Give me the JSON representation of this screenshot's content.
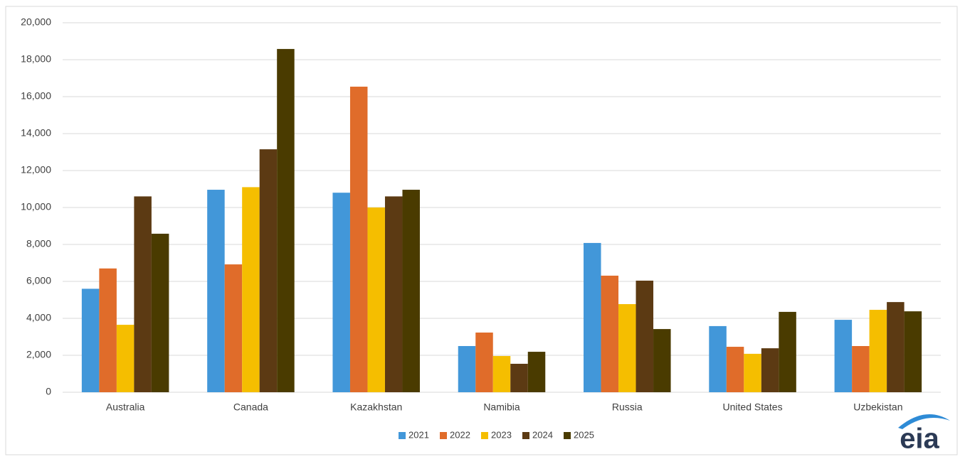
{
  "chart_data": {
    "type": "bar",
    "categories": [
      "Australia",
      "Canada",
      "Kazakhstan",
      "Namibia",
      "Russia",
      "United States",
      "Uzbekistan"
    ],
    "series": [
      {
        "name": "2021",
        "color": "#4297d9",
        "values": [
          5600,
          10960,
          10800,
          2500,
          8080,
          3580,
          3920
        ]
      },
      {
        "name": "2022",
        "color": "#e06c2a",
        "values": [
          6700,
          6920,
          16540,
          3230,
          6310,
          2460,
          2500
        ]
      },
      {
        "name": "2023",
        "color": "#f5be00",
        "values": [
          3650,
          11100,
          10000,
          1960,
          4770,
          2080,
          4460
        ]
      },
      {
        "name": "2024",
        "color": "#5c3a13",
        "values": [
          10600,
          13150,
          10600,
          1540,
          6040,
          2380,
          4880
        ]
      },
      {
        "name": "2025",
        "color": "#4a3b00",
        "values": [
          8580,
          18580,
          10960,
          2190,
          3420,
          4350,
          4380
        ]
      }
    ],
    "ylim": [
      0,
      20000
    ],
    "yticks": [
      0,
      {
        "value": 2000,
        "label": "2,000"
      },
      {
        "value": 4000,
        "label": "4,000"
      },
      {
        "value": 6000,
        "label": "6,000"
      },
      {
        "value": 8000,
        "label": "8,000"
      },
      {
        "value": 10000,
        "label": "10,000"
      },
      {
        "value": 12000,
        "label": "12,000"
      },
      {
        "value": 14000,
        "label": "14,000"
      },
      {
        "value": 16000,
        "label": "16,000"
      },
      {
        "value": 18000,
        "label": "18,000"
      },
      {
        "value": 20000,
        "label": "20,000"
      }
    ],
    "grid": true,
    "legend": "bottom",
    "logo": "eia"
  }
}
